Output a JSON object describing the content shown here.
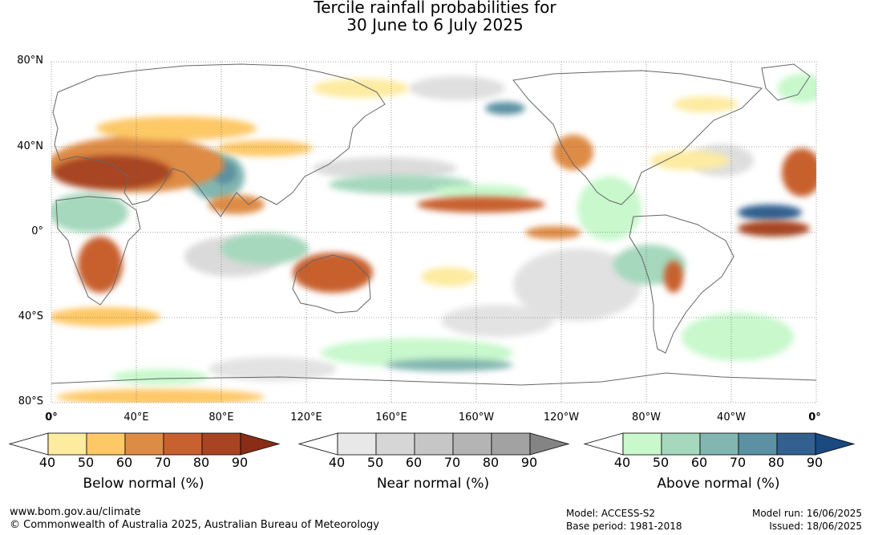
{
  "title": {
    "line1": "Tercile rainfall probabilities for",
    "line2": "30 June to 6 July 2025"
  },
  "lat_labels": [
    "80°N",
    "40°N",
    "0°",
    "40°S",
    "80°S"
  ],
  "lon_labels": [
    "0°",
    "40°E",
    "80°E",
    "120°E",
    "160°E",
    "160°W",
    "120°W",
    "80°W",
    "40°W",
    "0°"
  ],
  "colorbars": [
    {
      "title": "Below normal (%)",
      "ticks": [
        "40",
        "50",
        "60",
        "70",
        "80",
        "90"
      ],
      "colors": [
        "#ffffff",
        "#fdeba0",
        "#fdc866",
        "#de8b45",
        "#c8602f",
        "#a84422",
        "#8a2c16"
      ]
    },
    {
      "title": "Near normal (%)",
      "ticks": [
        "40",
        "50",
        "60",
        "70",
        "80",
        "90"
      ],
      "colors": [
        "#ffffff",
        "#e8e8e8",
        "#d6d6d6",
        "#c6c6c6",
        "#b4b4b4",
        "#a2a2a2",
        "#848484"
      ]
    },
    {
      "title": "Above normal (%)",
      "ticks": [
        "40",
        "50",
        "60",
        "70",
        "80",
        "90"
      ],
      "colors": [
        "#ffffff",
        "#c8f8cc",
        "#a6d8bd",
        "#82b6b0",
        "#5b91a2",
        "#33608f",
        "#1a4a80"
      ]
    }
  ],
  "footer": {
    "site": "www.bom.gov.au/climate",
    "copyright": "© Commonwealth of Australia 2025, Australian Bureau of Meteorology",
    "model": "Model: ACCESS-S2",
    "base_period": "Base period: 1981-2018",
    "model_run": "Model run: 16/06/2025",
    "issued": "Issued: 18/06/2025"
  },
  "map": {
    "below_color": "#d48a3a",
    "below_dark": "#a84422",
    "below_light": "#fdd68a",
    "near_color": "#dcdcdc",
    "above_color": "#c8f8cc",
    "above_dark": "#4f8aa0",
    "coast_color": "#666666"
  }
}
